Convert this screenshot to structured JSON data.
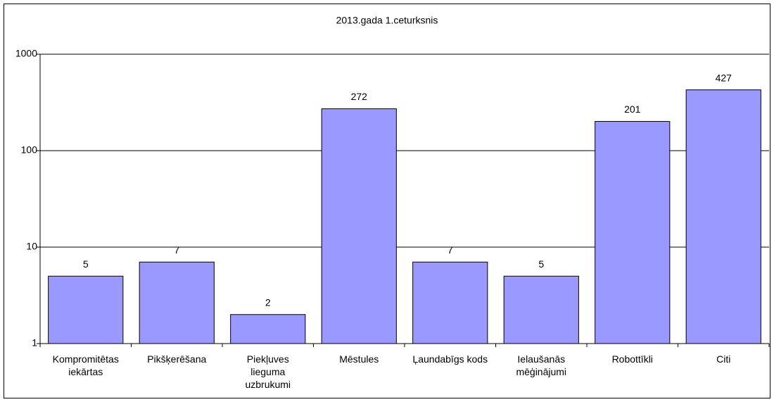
{
  "chart_data": {
    "type": "bar",
    "title": "2013.gada 1.ceturksnis",
    "categories": [
      "Kompromitētas iekārtas",
      "Pikšķerēšana",
      "Piekļuves lieguma uzbrukumi",
      "Mēstules",
      "Ļaundabīgs kods",
      "Ielaušanās mēģinājumi",
      "Robottīkli",
      "Citi"
    ],
    "values": [
      5,
      7,
      2,
      272,
      7,
      5,
      201,
      427
    ],
    "color": "#9999ff",
    "ylim": [
      1,
      1000
    ],
    "yticks": [
      1,
      10,
      100,
      1000
    ],
    "log_scale": true,
    "grid": true
  }
}
